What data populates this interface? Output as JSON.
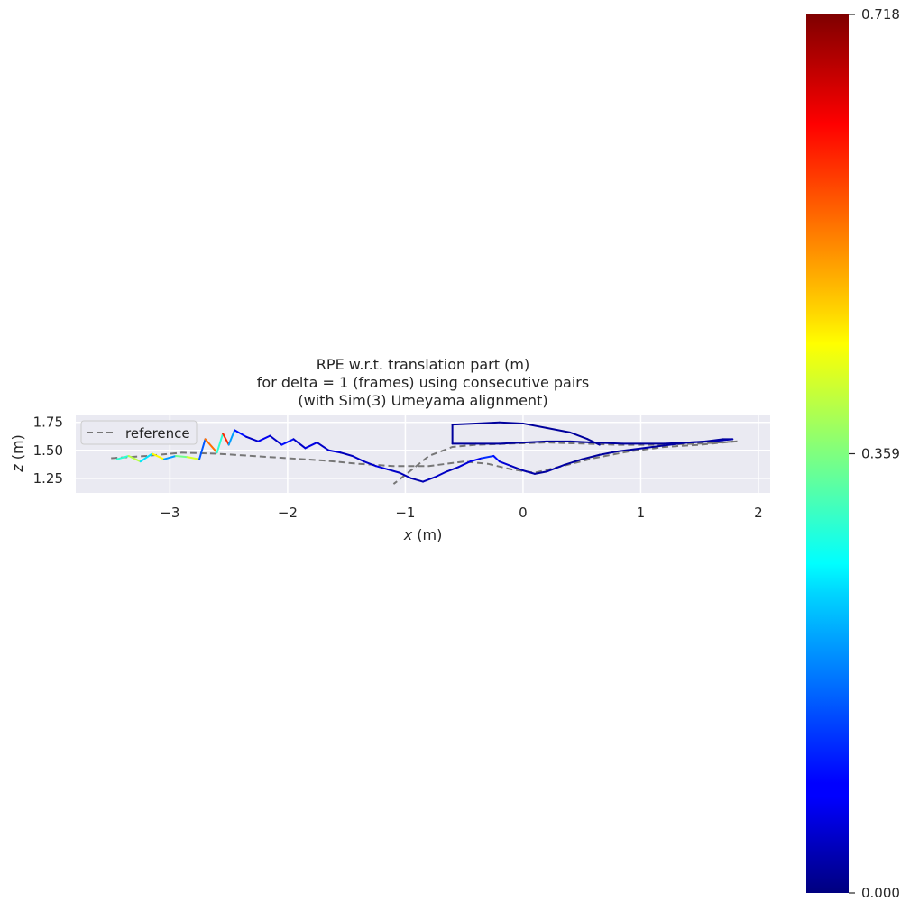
{
  "chart_data": {
    "type": "line",
    "title_lines": [
      "RPE w.r.t. translation part (m)",
      "for delta = 1 (frames) using consecutive pairs",
      "(with Sim(3) Umeyama alignment)"
    ],
    "xlabel_var": "x",
    "xlabel_unit": " (m)",
    "ylabel_var": "z",
    "ylabel_unit": " (m)",
    "xlim": [
      -3.8,
      2.1
    ],
    "ylim": [
      1.12,
      1.82
    ],
    "xticks": [
      -3,
      -2,
      -1,
      0,
      1,
      2
    ],
    "xtick_labels": [
      "−3",
      "−2",
      "−1",
      "0",
      "1",
      "2"
    ],
    "yticks": [
      1.25,
      1.5,
      1.75
    ],
    "ytick_labels": [
      "1.25",
      "1.50",
      "1.75"
    ],
    "grid": true,
    "legend": {
      "placement": "upper-left",
      "entries": [
        {
          "label": "reference",
          "style": "dashed",
          "color": "#777777"
        }
      ]
    },
    "reference": {
      "name": "reference",
      "points": [
        [
          -3.5,
          1.43
        ],
        [
          -3.2,
          1.45
        ],
        [
          -2.9,
          1.48
        ],
        [
          -2.6,
          1.47
        ],
        [
          -2.3,
          1.45
        ],
        [
          -2.0,
          1.43
        ],
        [
          -1.7,
          1.41
        ],
        [
          -1.4,
          1.38
        ],
        [
          -1.1,
          1.36
        ],
        [
          -0.8,
          1.36
        ],
        [
          -0.5,
          1.4
        ],
        [
          -0.3,
          1.38
        ],
        [
          -0.1,
          1.33
        ],
        [
          0.1,
          1.3
        ],
        [
          0.3,
          1.35
        ],
        [
          0.6,
          1.43
        ],
        [
          0.9,
          1.49
        ],
        [
          1.2,
          1.53
        ],
        [
          1.5,
          1.55
        ],
        [
          1.7,
          1.57
        ],
        [
          1.82,
          1.58
        ],
        [
          1.5,
          1.56
        ],
        [
          1.1,
          1.55
        ],
        [
          0.8,
          1.55
        ],
        [
          0.5,
          1.56
        ],
        [
          0.2,
          1.57
        ],
        [
          -0.1,
          1.56
        ],
        [
          -0.4,
          1.55
        ],
        [
          -0.6,
          1.53
        ],
        [
          -0.8,
          1.45
        ],
        [
          -1.0,
          1.28
        ],
        [
          -1.1,
          1.2
        ]
      ]
    },
    "trajectory": {
      "name": "RPE",
      "points": [
        [
          -3.45,
          1.42,
          0.3
        ],
        [
          -3.35,
          1.45,
          0.4
        ],
        [
          -3.25,
          1.4,
          0.25
        ],
        [
          -3.15,
          1.47,
          0.45
        ],
        [
          -3.05,
          1.42,
          0.2
        ],
        [
          -2.95,
          1.45,
          0.35
        ],
        [
          -2.85,
          1.44,
          0.42
        ],
        [
          -2.75,
          1.42,
          0.15
        ],
        [
          -2.7,
          1.6,
          0.55
        ],
        [
          -2.6,
          1.48,
          0.3
        ],
        [
          -2.55,
          1.65,
          0.6
        ],
        [
          -2.5,
          1.55,
          0.2
        ],
        [
          -2.45,
          1.68,
          0.1
        ],
        [
          -2.35,
          1.62,
          0.05
        ],
        [
          -2.25,
          1.58,
          0.08
        ],
        [
          -2.15,
          1.63,
          0.05
        ],
        [
          -2.05,
          1.55,
          0.1
        ],
        [
          -1.95,
          1.6,
          0.05
        ],
        [
          -1.85,
          1.52,
          0.07
        ],
        [
          -1.75,
          1.57,
          0.05
        ],
        [
          -1.65,
          1.5,
          0.06
        ],
        [
          -1.55,
          1.48,
          0.04
        ],
        [
          -1.45,
          1.45,
          0.05
        ],
        [
          -1.35,
          1.4,
          0.05
        ],
        [
          -1.25,
          1.36,
          0.07
        ],
        [
          -1.15,
          1.33,
          0.05
        ],
        [
          -1.05,
          1.3,
          0.04
        ],
        [
          -0.95,
          1.25,
          0.03
        ],
        [
          -0.85,
          1.22,
          0.04
        ],
        [
          -0.75,
          1.26,
          0.05
        ],
        [
          -0.65,
          1.31,
          0.04
        ],
        [
          -0.55,
          1.35,
          0.06
        ],
        [
          -0.45,
          1.4,
          0.08
        ],
        [
          -0.35,
          1.43,
          0.12
        ],
        [
          -0.25,
          1.45,
          0.1
        ],
        [
          -0.2,
          1.4,
          0.06
        ],
        [
          -0.1,
          1.36,
          0.04
        ],
        [
          0.0,
          1.32,
          0.03
        ],
        [
          0.1,
          1.29,
          0.02
        ],
        [
          0.2,
          1.31,
          0.03
        ],
        [
          0.35,
          1.37,
          0.02
        ],
        [
          0.5,
          1.42,
          0.02
        ],
        [
          0.65,
          1.46,
          0.02
        ],
        [
          0.8,
          1.49,
          0.02
        ],
        [
          0.95,
          1.51,
          0.03
        ],
        [
          1.1,
          1.53,
          0.02
        ],
        [
          1.25,
          1.55,
          0.02
        ],
        [
          1.4,
          1.57,
          0.02
        ],
        [
          1.55,
          1.58,
          0.02
        ],
        [
          1.7,
          1.6,
          0.02
        ],
        [
          1.78,
          1.6,
          0.03
        ],
        [
          1.6,
          1.58,
          0.02
        ],
        [
          1.4,
          1.57,
          0.02
        ],
        [
          1.2,
          1.56,
          0.02
        ],
        [
          1.0,
          1.56,
          0.02
        ],
        [
          0.85,
          1.56,
          0.02
        ],
        [
          0.6,
          1.57,
          0.02
        ],
        [
          0.4,
          1.58,
          0.02
        ],
        [
          0.2,
          1.58,
          0.02
        ],
        [
          0.0,
          1.57,
          0.02
        ],
        [
          -0.2,
          1.56,
          0.02
        ],
        [
          -0.4,
          1.56,
          0.02
        ],
        [
          -0.6,
          1.56,
          0.02
        ],
        [
          -0.6,
          1.73,
          0.02
        ],
        [
          -0.4,
          1.74,
          0.02
        ],
        [
          -0.2,
          1.75,
          0.02
        ],
        [
          0.0,
          1.74,
          0.02
        ],
        [
          0.2,
          1.7,
          0.02
        ],
        [
          0.4,
          1.66,
          0.02
        ],
        [
          0.55,
          1.6,
          0.02
        ],
        [
          0.65,
          1.55,
          0.02
        ]
      ]
    },
    "colorbar": {
      "min": 0.0,
      "max": 0.718,
      "ticks": [
        0.0,
        0.359,
        0.718
      ],
      "tick_labels": [
        "0.000",
        "0.359",
        "0.718"
      ],
      "colormap": "jet"
    },
    "colors": {
      "axes_bg": "#eaeaf2",
      "grid": "#ffffff",
      "reference": "#777777",
      "text": "#262626"
    }
  }
}
